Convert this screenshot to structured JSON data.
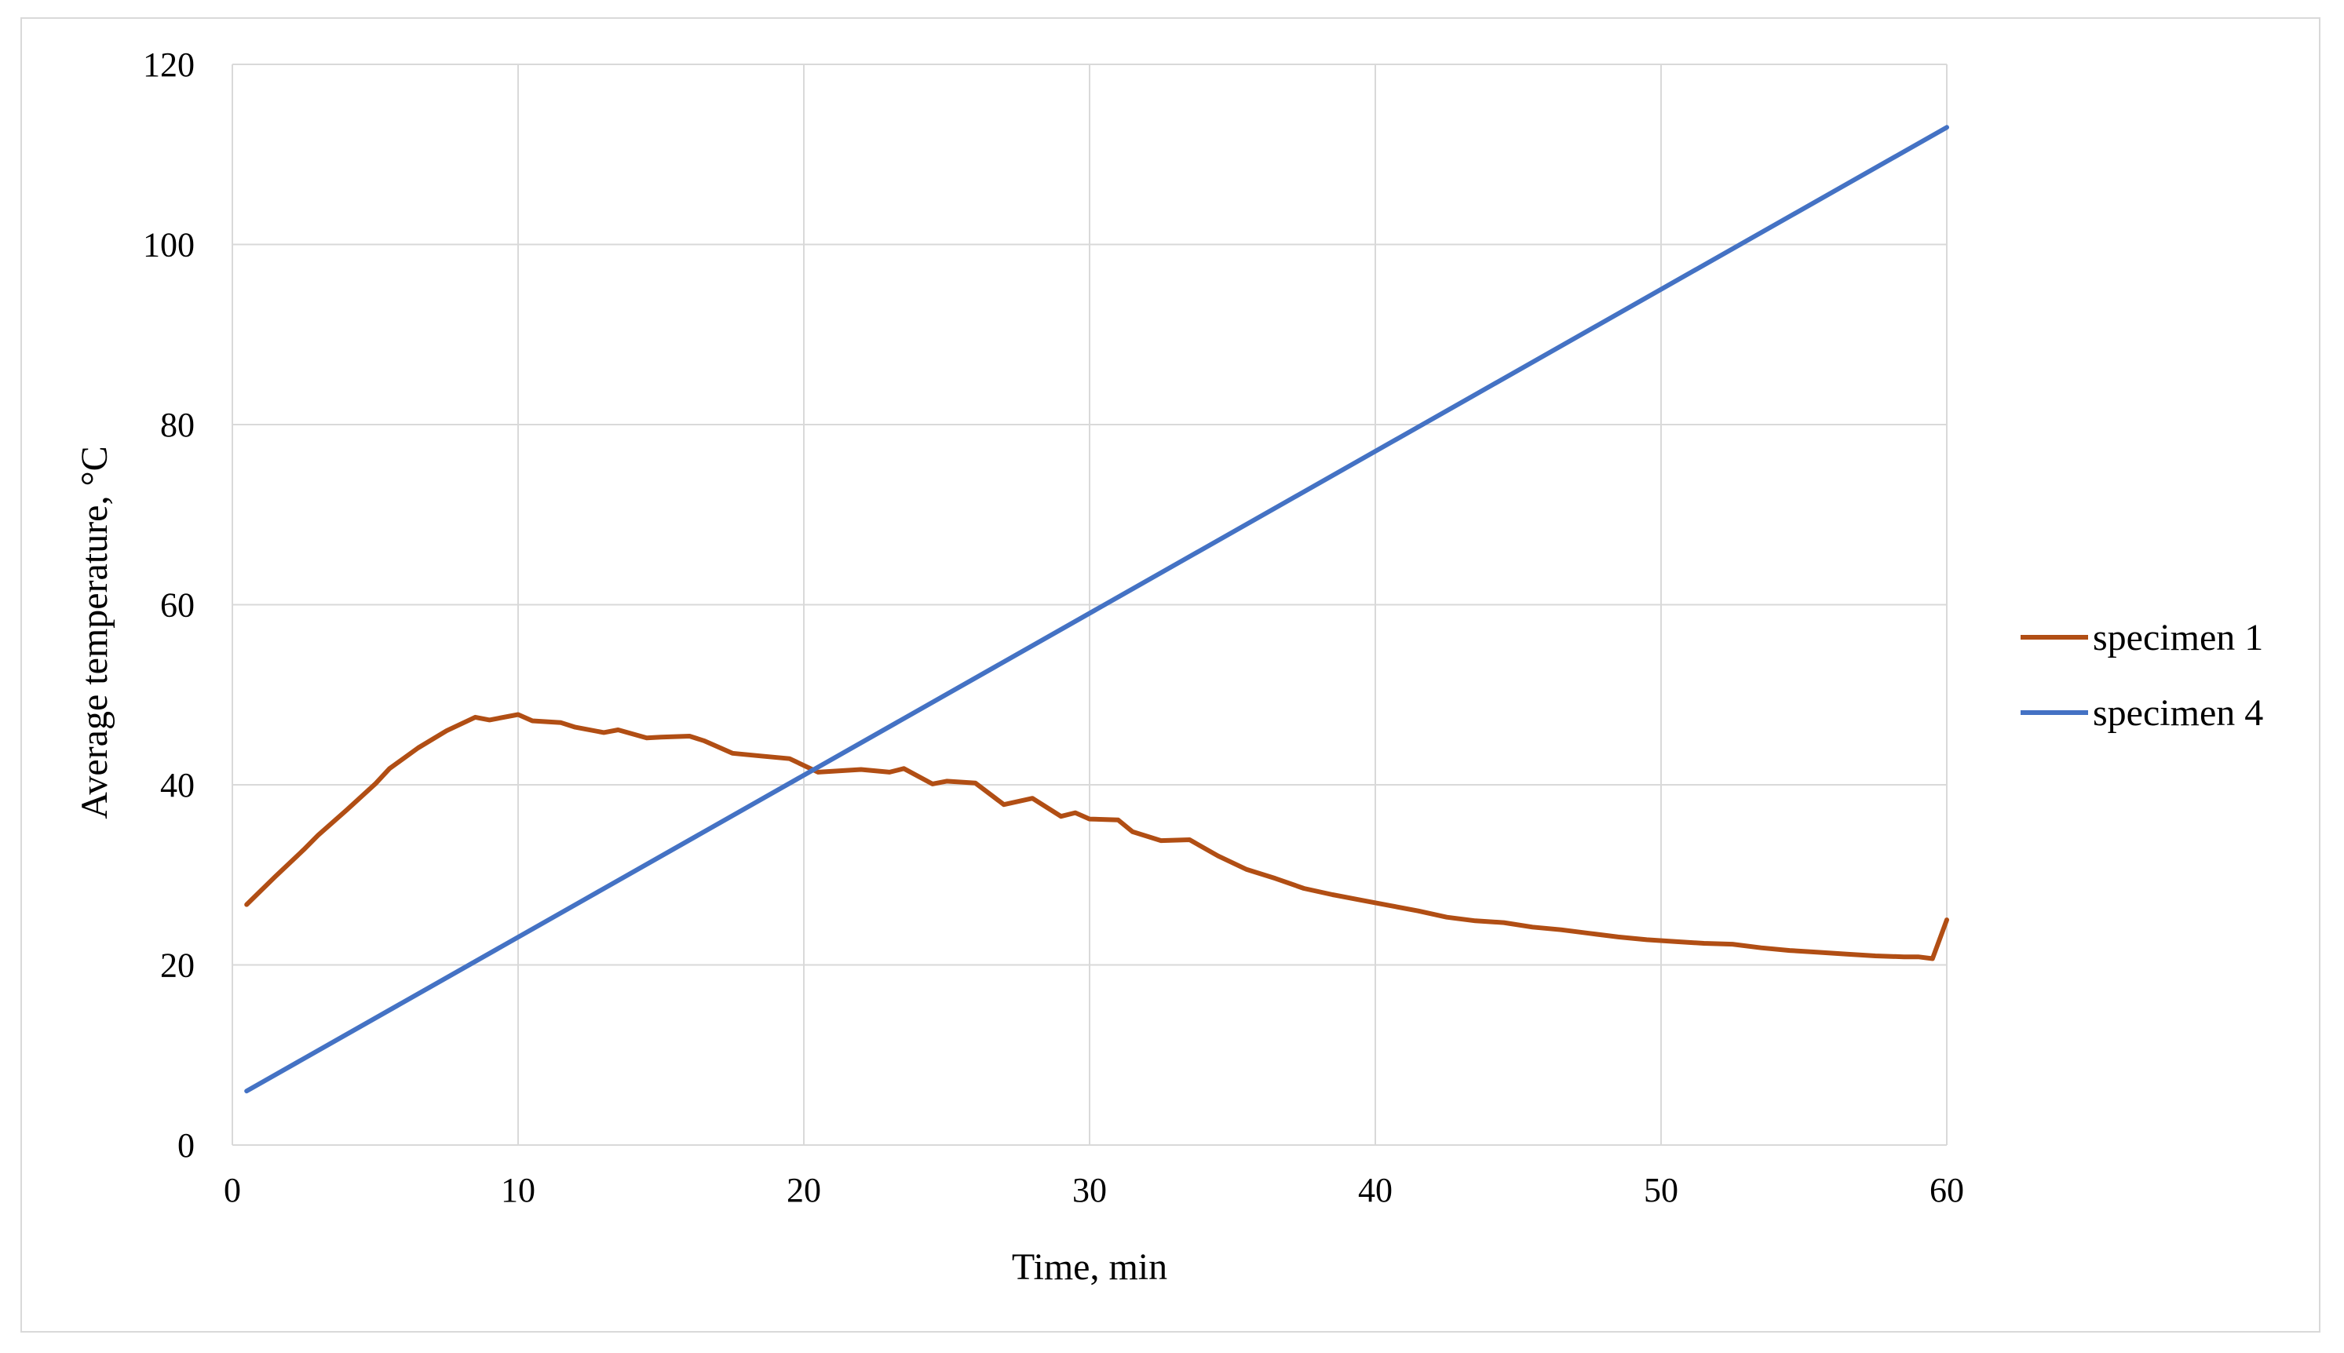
{
  "chart_data": {
    "type": "line",
    "title": "",
    "xlabel": "Time, min",
    "ylabel": "Average temperature, °C",
    "xlim": [
      0,
      60
    ],
    "ylim": [
      0,
      120
    ],
    "x_ticks": [
      0,
      10,
      20,
      30,
      40,
      50,
      60
    ],
    "y_ticks": [
      0,
      20,
      40,
      60,
      80,
      100,
      120
    ],
    "grid": true,
    "legend_position": "right",
    "series": [
      {
        "name": "specimen 1",
        "color": "#b14e14",
        "x": [
          0.5,
          1.5,
          2.5,
          3,
          4,
          5,
          5.5,
          6.5,
          7.5,
          8.5,
          9,
          10,
          10.5,
          11.5,
          12,
          13,
          13.5,
          14.5,
          15,
          16,
          16.5,
          17.5,
          18.5,
          19.5,
          20.5,
          21,
          22,
          23,
          23.5,
          24.5,
          25,
          26,
          27,
          28,
          29,
          29.5,
          30,
          31,
          31.5,
          32.5,
          33.5,
          34.5,
          35.5,
          36.5,
          37.5,
          38.5,
          39.5,
          40.5,
          41.5,
          42.5,
          43.5,
          44.5,
          45.5,
          46.5,
          47.5,
          48.5,
          49.5,
          50.5,
          51.5,
          52.5,
          53.5,
          54.5,
          55.5,
          56.5,
          57.5,
          58.5,
          59,
          59.5,
          60
        ],
        "y": [
          26.7,
          29.8,
          32.8,
          34.4,
          37.2,
          40.1,
          41.8,
          44.1,
          46,
          47.5,
          47.2,
          47.8,
          47.1,
          46.9,
          46.4,
          45.8,
          46.1,
          45.2,
          45.3,
          45.4,
          44.9,
          43.5,
          43.2,
          42.9,
          41.4,
          41.5,
          41.7,
          41.4,
          41.8,
          40.1,
          40.4,
          40.2,
          37.8,
          38.5,
          36.5,
          36.9,
          36.2,
          36.1,
          34.8,
          33.8,
          33.9,
          32.1,
          30.6,
          29.6,
          28.5,
          27.8,
          27.2,
          26.6,
          26,
          25.3,
          24.9,
          24.7,
          24.2,
          23.9,
          23.5,
          23.1,
          22.8,
          22.6,
          22.4,
          22.3,
          21.9,
          21.6,
          21.4,
          21.2,
          21,
          20.9,
          20.9,
          20.7,
          25
        ]
      },
      {
        "name": "specimen 4",
        "color": "#4472c4",
        "x": [
          0.5,
          60
        ],
        "y": [
          6,
          113
        ]
      }
    ]
  }
}
